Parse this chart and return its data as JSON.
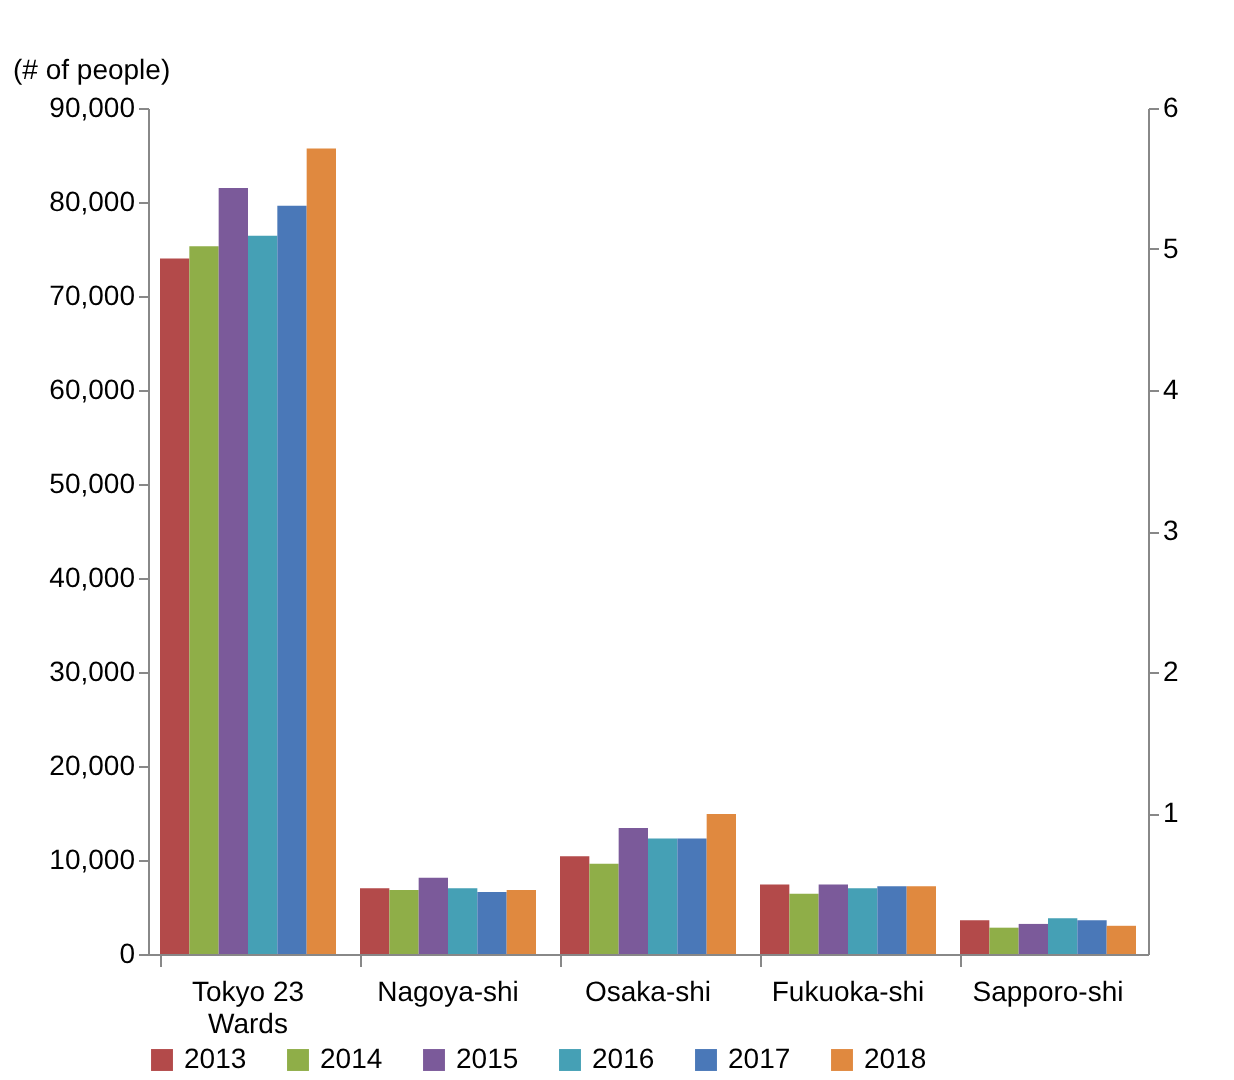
{
  "chart_data": {
    "type": "bar",
    "ylabel": "(# of people)",
    "categories": [
      "Tokyo 23 Wards",
      "Nagoya-shi",
      "Osaka-shi",
      "Fukuoka-shi",
      "Sapporo-shi"
    ],
    "series": [
      {
        "name": "2013",
        "color": "#b34a4a",
        "values": [
          74000,
          7000,
          10400,
          7400,
          3600
        ]
      },
      {
        "name": "2014",
        "color": "#8fae48",
        "values": [
          75300,
          6800,
          9600,
          6400,
          2800
        ]
      },
      {
        "name": "2015",
        "color": "#7b5a9a",
        "values": [
          81500,
          8100,
          13400,
          7400,
          3200
        ]
      },
      {
        "name": "2016",
        "color": "#45a0b5",
        "values": [
          76400,
          7000,
          12300,
          7000,
          3800
        ]
      },
      {
        "name": "2017",
        "color": "#4a78b8",
        "values": [
          79600,
          6600,
          12300,
          7200,
          3600
        ]
      },
      {
        "name": "2018",
        "color": "#e0893f",
        "values": [
          85700,
          6800,
          14900,
          7200,
          3000
        ]
      }
    ],
    "ylim": [
      0,
      90000
    ],
    "yticks": [
      0,
      {
        "value": 10000,
        "label": "10,000"
      },
      {
        "value": 20000,
        "label": "20,000"
      },
      {
        "value": 30000,
        "label": "30,000"
      },
      {
        "value": 40000,
        "label": "40,000"
      },
      {
        "value": 50000,
        "label": "50,000"
      },
      {
        "value": 60000,
        "label": "60,000"
      },
      {
        "value": 70000,
        "label": "70,000"
      },
      {
        "value": 80000,
        "label": "80,000"
      },
      {
        "value": 90000,
        "label": "90,000"
      }
    ],
    "y2lim": [
      0,
      6
    ],
    "y2ticks": [
      1,
      2,
      3,
      4,
      5,
      6
    ],
    "grid": false,
    "legend": "bottom"
  }
}
